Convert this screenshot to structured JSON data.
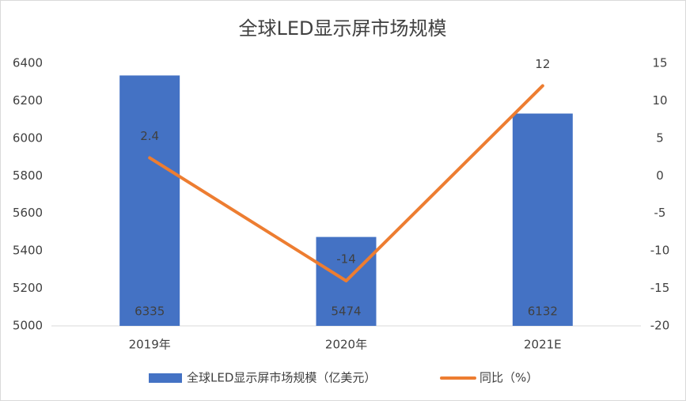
{
  "chart_data": {
    "type": "bar-line",
    "title": "全球LED显示屏市场规模",
    "categories": [
      "2019年",
      "2020年",
      "2021E"
    ],
    "series": [
      {
        "name": "全球LED显示屏市场规模（亿美元）",
        "type": "bar",
        "color": "#4472c4",
        "values": [
          6335,
          5474,
          6132
        ]
      },
      {
        "name": "同比（%）",
        "type": "line",
        "axis": "y2",
        "color": "#ed7d31",
        "values": [
          2.4,
          -14,
          12
        ]
      }
    ],
    "ylim": [
      5000,
      6400
    ],
    "yticks": [
      5000,
      5200,
      5400,
      5600,
      5800,
      6000,
      6200,
      6400
    ],
    "y2lim": [
      -20,
      15
    ],
    "y2ticks": [
      -20,
      -15,
      -10,
      -5,
      0,
      5,
      10,
      15
    ],
    "grid": false,
    "legend": "bottom"
  }
}
